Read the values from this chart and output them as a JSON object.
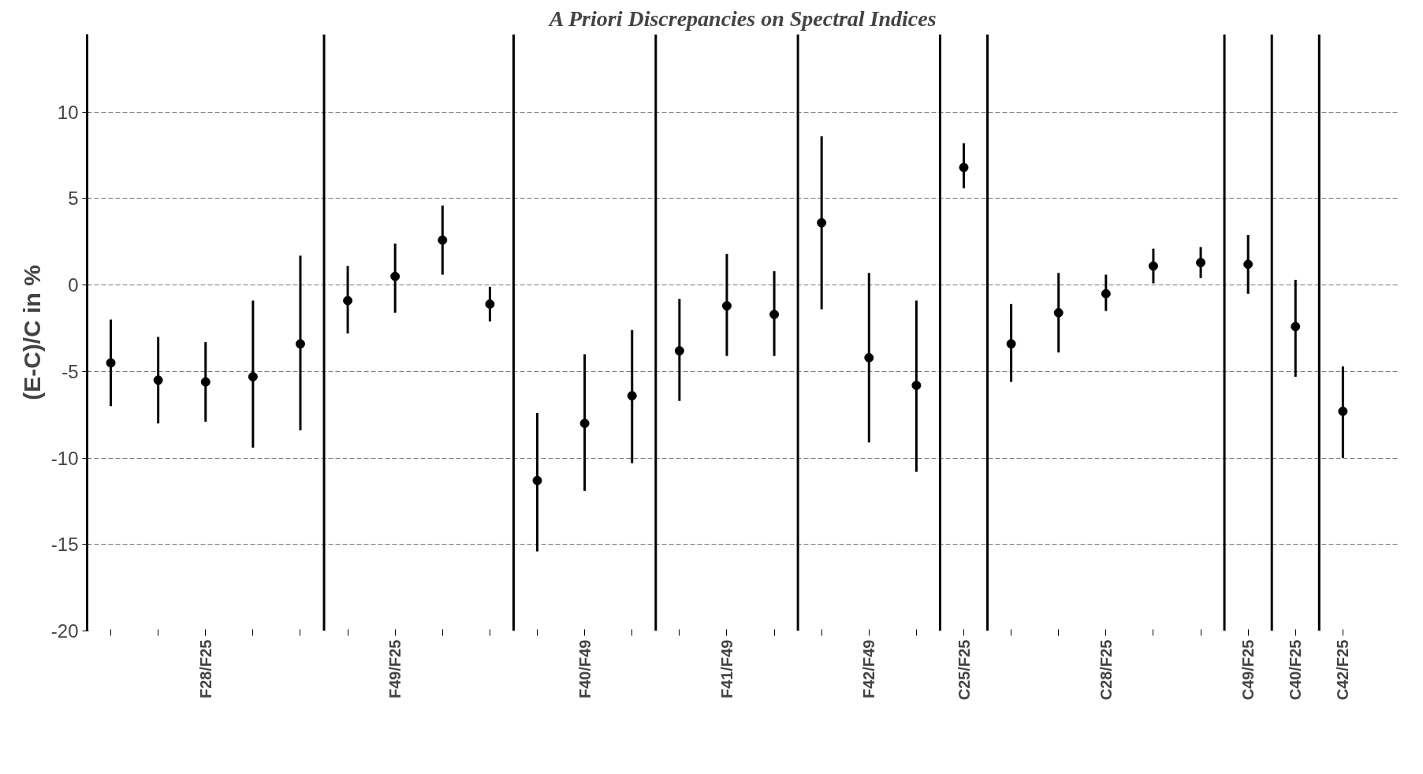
{
  "chart_data": {
    "type": "scatter",
    "title": "A Priori Discrepancies on Spectral Indices",
    "ylabel": "(E-C)/C in %",
    "categories": [
      null,
      null,
      "F28/F25",
      null,
      null,
      null,
      "F49/F25",
      null,
      null,
      null,
      "F40/F49",
      null,
      null,
      "F41/F49",
      null,
      null,
      "F42/F49",
      null,
      "C25/F25",
      null,
      null,
      "C28/F25",
      null,
      null,
      "C49/F25",
      "C40/F25",
      "C42/F25"
    ],
    "series": [
      {
        "color": "#000000",
        "values": [
          -4.5,
          -5.5,
          -5.6,
          -5.3,
          -3.4,
          -0.9,
          0.5,
          2.6,
          -1.1,
          -11.3,
          -8.0,
          -6.4,
          -3.8,
          -1.2,
          -1.7,
          3.6,
          -4.2,
          -5.8,
          6.8,
          -3.4,
          -1.6,
          -0.5,
          1.1,
          1.3,
          1.2,
          -2.4,
          -7.3
        ],
        "errors": [
          [
            -7.0,
            -2.0
          ],
          [
            -8.0,
            -3.0
          ],
          [
            -7.9,
            -3.3
          ],
          [
            -9.4,
            -0.9
          ],
          [
            -8.4,
            1.7
          ],
          [
            -2.8,
            1.1
          ],
          [
            -1.6,
            2.4
          ],
          [
            0.6,
            4.6
          ],
          [
            -2.1,
            -0.1
          ],
          [
            -15.4,
            -7.4
          ],
          [
            -11.9,
            -4.0
          ],
          [
            -10.3,
            -2.6
          ],
          [
            -6.7,
            -0.8
          ],
          [
            -4.1,
            1.8
          ],
          [
            -4.1,
            0.8
          ],
          [
            -1.4,
            8.6
          ],
          [
            -9.1,
            0.7
          ],
          [
            -10.8,
            -0.9
          ],
          [
            5.6,
            8.2
          ],
          [
            -5.6,
            -1.1
          ],
          [
            -3.9,
            0.7
          ],
          [
            -1.5,
            0.6
          ],
          [
            0.1,
            2.1
          ],
          [
            0.4,
            2.2
          ],
          [
            -0.5,
            2.9
          ],
          [
            -5.3,
            0.3
          ],
          [
            -10.0,
            -4.7
          ]
        ]
      }
    ],
    "ylim": [
      -20,
      14.5
    ],
    "yticks": [
      -20,
      -15,
      -10,
      -5,
      0,
      5,
      10
    ],
    "grid": "y",
    "marker": "circle"
  }
}
